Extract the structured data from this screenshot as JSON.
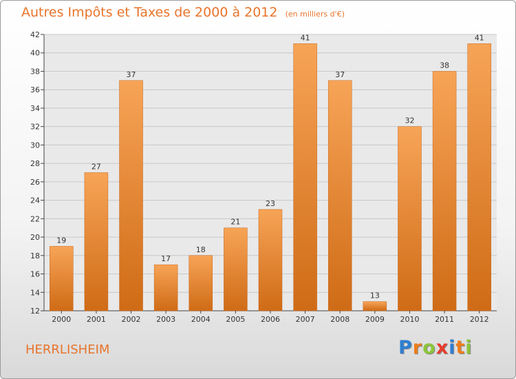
{
  "chart_data": {
    "type": "bar",
    "title": "Autres Impôts et Taxes de 2000 à 2012",
    "subtitle": "(en milliers d'€)",
    "categories": [
      "2000",
      "2001",
      "2002",
      "2003",
      "2004",
      "2005",
      "2006",
      "2007",
      "2008",
      "2009",
      "2010",
      "2011",
      "2012"
    ],
    "values": [
      19,
      27,
      37,
      17,
      18,
      21,
      23,
      41,
      37,
      13,
      32,
      38,
      41
    ],
    "xlabel": "",
    "ylabel": "",
    "ylim": [
      12,
      42
    ],
    "yticks": [
      12,
      14,
      16,
      18,
      20,
      22,
      24,
      26,
      28,
      30,
      32,
      34,
      36,
      38,
      40,
      42
    ],
    "grid": true,
    "bar_color": "#e8832f"
  },
  "commune": "HERRLISHEIM",
  "brand": {
    "letters": [
      {
        "char": "P",
        "color": "#2f7fd1"
      },
      {
        "char": "r",
        "color": "#ef7d1c"
      },
      {
        "char": "o",
        "color": "#8cc43b"
      },
      {
        "char": "x",
        "color": "#e83c2c"
      },
      {
        "char": "i",
        "color": "#2f7fd1"
      },
      {
        "char": "t",
        "color": "#ef7d1c"
      },
      {
        "char": "i",
        "color": "#8cc43b"
      }
    ]
  }
}
